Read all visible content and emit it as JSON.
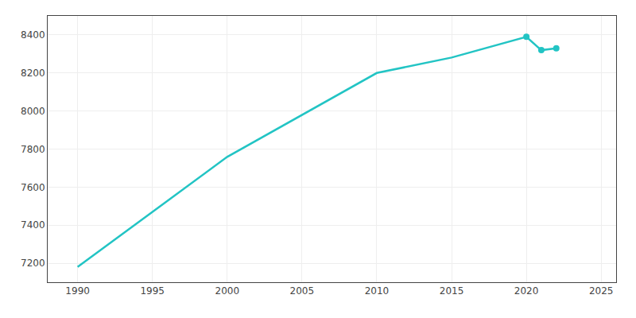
{
  "chart_data": {
    "type": "line",
    "x": [
      1990,
      2000,
      2010,
      2015,
      2020,
      2021,
      2022
    ],
    "series": [
      {
        "type": "line",
        "color": "#22c4c4",
        "values": [
          7180,
          7759,
          8200,
          8281,
          8390,
          8320,
          8330
        ]
      },
      {
        "type": "scatter",
        "marker": "circle",
        "color": "#22c4c4",
        "values": [
          null,
          null,
          null,
          null,
          8390,
          8320,
          8330
        ]
      }
    ],
    "xlim": [
      1988,
      2026
    ],
    "ylim": [
      7100,
      8500
    ],
    "xticks": [
      1990,
      1995,
      2000,
      2005,
      2010,
      2015,
      2020,
      2025
    ],
    "yticks": [
      7200,
      7400,
      7600,
      7800,
      8000,
      8200,
      8400
    ],
    "grid": true
  }
}
